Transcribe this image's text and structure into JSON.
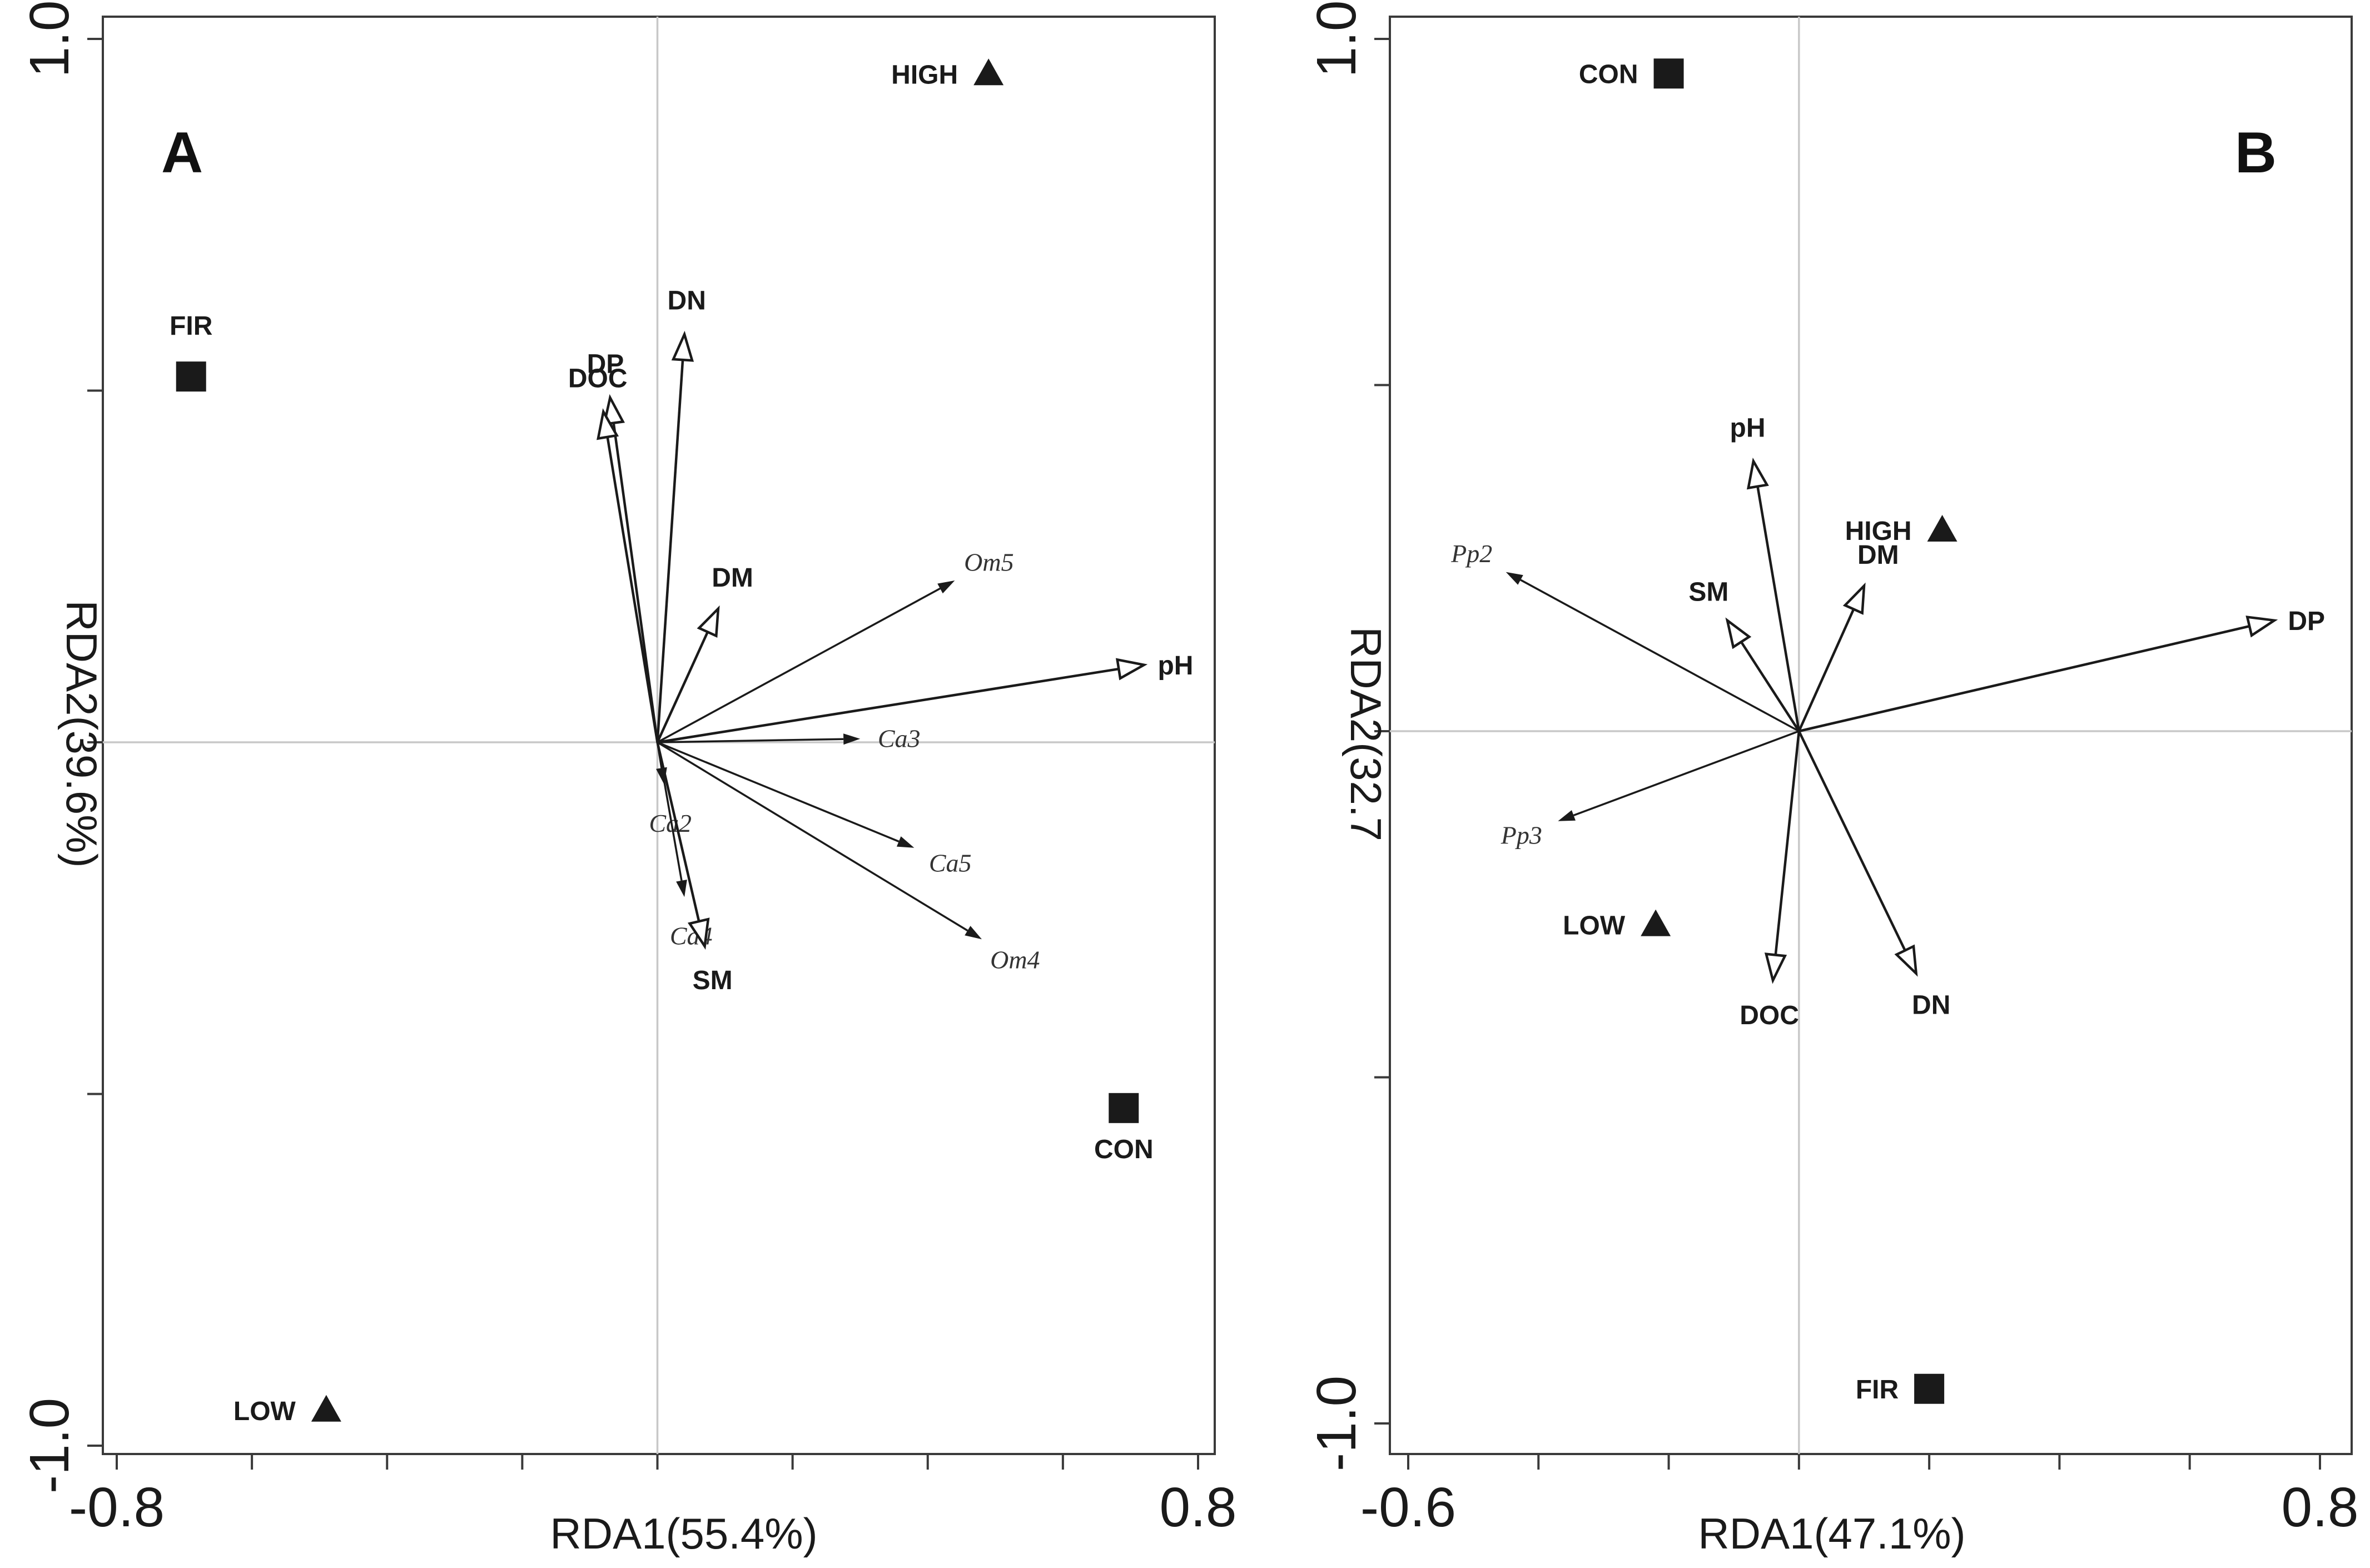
{
  "chart_data": [
    {
      "type": "scatter",
      "panel_label": "A",
      "xlabel": "RDA1(55.4%)",
      "ylabel": "RDA2(39.6%)",
      "xlim": [
        -0.8,
        0.8
      ],
      "ylim": [
        -1.0,
        1.0
      ],
      "x_tick_labels": [
        {
          "value": -0.8,
          "label": "-0.8"
        },
        {
          "value": 0.8,
          "label": "0.8"
        }
      ],
      "y_tick_labels": [
        {
          "value": 1.0,
          "label": "1.0"
        },
        {
          "value": -1.0,
          "label": "-1.0"
        }
      ],
      "x_ticks": [
        -0.8,
        -0.6,
        -0.4,
        -0.2,
        0.0,
        0.2,
        0.4,
        0.6,
        0.8
      ],
      "y_ticks": [
        -1.0,
        -0.5,
        0.0,
        0.5,
        1.0
      ],
      "sites": [
        {
          "label": "HIGH",
          "shape": "triangle",
          "x": 0.49,
          "y": 0.95
        },
        {
          "label": "FIR",
          "shape": "square",
          "x": -0.69,
          "y": 0.52
        },
        {
          "label": "CON",
          "shape": "square",
          "x": 0.69,
          "y": -0.52
        },
        {
          "label": "LOW",
          "shape": "triangle",
          "x": -0.49,
          "y": -0.95
        }
      ],
      "environment_vectors": [
        {
          "label": "DN",
          "x": 0.04,
          "y": 0.58
        },
        {
          "label": "DP",
          "x": -0.07,
          "y": 0.49
        },
        {
          "label": "DOC",
          "x": -0.08,
          "y": 0.47
        },
        {
          "label": "DM",
          "x": 0.09,
          "y": 0.19
        },
        {
          "label": "pH",
          "x": 0.72,
          "y": 0.11
        },
        {
          "label": "SM",
          "x": 0.07,
          "y": -0.29
        }
      ],
      "species_vectors": [
        {
          "label": "Om5",
          "x": 0.44,
          "y": 0.23
        },
        {
          "label": "Ca3",
          "x": 0.3,
          "y": 0.005
        },
        {
          "label": "Ca2",
          "x": 0.01,
          "y": -0.06
        },
        {
          "label": "Ca5",
          "x": 0.38,
          "y": -0.15
        },
        {
          "label": "Ca4",
          "x": 0.04,
          "y": -0.22
        },
        {
          "label": "Om4",
          "x": 0.48,
          "y": -0.28
        }
      ]
    },
    {
      "type": "scatter",
      "panel_label": "B",
      "xlabel": "RDA1(47.1%)",
      "ylabel": "RDA2(32.7",
      "xlim": [
        -0.6,
        0.8
      ],
      "ylim": [
        -1.0,
        1.0
      ],
      "x_tick_labels": [
        {
          "value": -0.6,
          "label": "-0.6"
        },
        {
          "value": 0.8,
          "label": "0.8"
        }
      ],
      "y_tick_labels": [
        {
          "value": 1.0,
          "label": "1.0"
        },
        {
          "value": -1.0,
          "label": "-1.0"
        }
      ],
      "x_ticks": [
        -0.6,
        -0.4,
        -0.2,
        0.0,
        0.2,
        0.4,
        0.6,
        0.8
      ],
      "y_ticks": [
        -1.0,
        -0.5,
        0.0,
        0.5,
        1.0
      ],
      "sites": [
        {
          "label": "CON",
          "shape": "square",
          "x": -0.2,
          "y": 0.95
        },
        {
          "label": "HIGH",
          "shape": "triangle",
          "x": 0.22,
          "y": 0.29
        },
        {
          "label": "LOW",
          "shape": "triangle",
          "x": -0.22,
          "y": -0.28
        },
        {
          "label": "FIR",
          "shape": "square",
          "x": 0.2,
          "y": -0.95
        }
      ],
      "environment_vectors": [
        {
          "label": "pH",
          "x": -0.07,
          "y": 0.39
        },
        {
          "label": "DM",
          "x": 0.1,
          "y": 0.21
        },
        {
          "label": "SM",
          "x": -0.11,
          "y": 0.16
        },
        {
          "label": "DP",
          "x": 0.73,
          "y": 0.16
        },
        {
          "label": "DOC",
          "x": -0.04,
          "y": -0.36
        },
        {
          "label": "DN",
          "x": 0.18,
          "y": -0.35
        }
      ],
      "species_vectors": [
        {
          "label": "Pp2",
          "x": -0.45,
          "y": 0.23
        },
        {
          "label": "Pp3",
          "x": -0.37,
          "y": -0.13
        }
      ]
    }
  ]
}
